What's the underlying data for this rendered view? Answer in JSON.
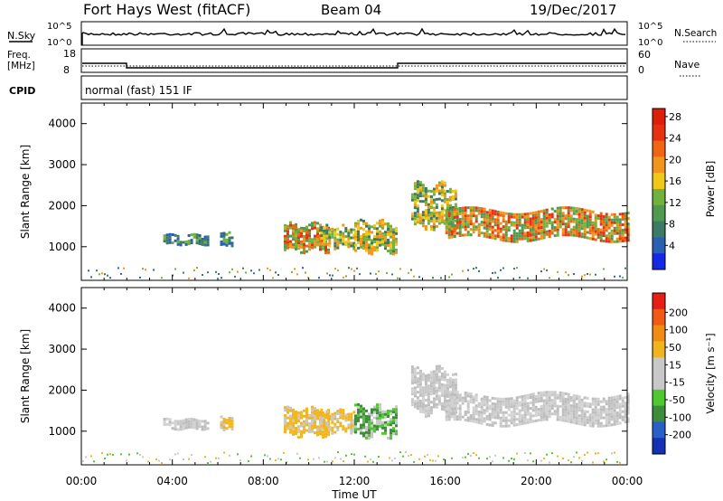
{
  "header": {
    "station": "Fort Hays West (fitACF)",
    "beam": "Beam 04",
    "date": "19/Dec/2017"
  },
  "param_panel": {
    "nsky_label": "N.Sky",
    "nsearch_label": "N.Search",
    "noise_ticks": [
      "10^5",
      "10^0"
    ],
    "freq_label_line1": "Freq.",
    "freq_label_line2": "[MHz]",
    "freq_ticks": [
      "18",
      "8"
    ],
    "nave_label": "Nave",
    "nave_ticks": [
      "60",
      "0"
    ],
    "cpid_label": "CPID",
    "cpid_value": "normal (fast) 151 IF"
  },
  "x_axis": {
    "label": "Time UT",
    "tick_labels": [
      "00:00",
      "04:00",
      "08:00",
      "12:00",
      "16:00",
      "20:00",
      "00:00"
    ]
  },
  "chart_data": [
    {
      "type": "heatmap",
      "name": "power",
      "ylabel": "Slant Range [km]",
      "y_ticks": [
        1000,
        2000,
        3000,
        4000
      ],
      "ylim": [
        180,
        4500
      ],
      "xlim_hours": [
        0,
        24
      ],
      "colorbar_label": "Power [dB]",
      "colorbar_ticks": [
        "4",
        "8",
        "12",
        "16",
        "20",
        "24",
        "28"
      ],
      "colorbar_colors": [
        "#1428e6",
        "#2a60b4",
        "#3c7a64",
        "#4f9a4f",
        "#71b23c",
        "#f0c818",
        "#f0961e",
        "#f06414",
        "#e63210",
        "#dc1e0a"
      ],
      "echo_regions": [
        {
          "t_start": 3.6,
          "t_end": 5.6,
          "r_low": 1050,
          "r_high": 1300,
          "level": "weak"
        },
        {
          "t_start": 6.1,
          "t_end": 6.6,
          "r_low": 1050,
          "r_high": 1350,
          "level": "weak"
        },
        {
          "t_start": 8.9,
          "t_end": 10.9,
          "r_low": 950,
          "r_high": 1550,
          "level": "strong"
        },
        {
          "t_start": 10.5,
          "t_end": 12.0,
          "r_low": 1000,
          "r_high": 1500,
          "level": "medium"
        },
        {
          "t_start": 12.0,
          "t_end": 13.8,
          "r_low": 900,
          "r_high": 1600,
          "level": "medium"
        },
        {
          "t_start": 14.5,
          "t_end": 16.5,
          "r_low": 1500,
          "r_high": 2500,
          "level": "medium"
        },
        {
          "t_start": 16.0,
          "t_end": 24.0,
          "r_low": 1200,
          "r_high": 1900,
          "level": "strong"
        }
      ]
    },
    {
      "type": "heatmap",
      "name": "velocity",
      "ylabel": "Slant Range [km]",
      "y_ticks": [
        1000,
        2000,
        3000,
        4000
      ],
      "ylim": [
        180,
        4500
      ],
      "xlim_hours": [
        0,
        24
      ],
      "colorbar_label": "Velocity [m s⁻¹]",
      "colorbar_ticks": [
        "200",
        "100",
        "50",
        "15",
        "-15",
        "-50",
        "-100",
        "-200"
      ],
      "colorbar_colors": [
        "#1432b4",
        "#2860c8",
        "#3c8c3c",
        "#50c832",
        "#c8c8c8",
        "#c8c8c8",
        "#f0b41e",
        "#f08c14",
        "#f05a14",
        "#e61e14"
      ],
      "echo_regions": [
        {
          "t_start": 3.6,
          "t_end": 5.6,
          "r_low": 1050,
          "r_high": 1300,
          "level": "gray"
        },
        {
          "t_start": 6.1,
          "t_end": 6.6,
          "r_low": 1050,
          "r_high": 1350,
          "level": "orange"
        },
        {
          "t_start": 8.9,
          "t_end": 10.9,
          "r_low": 950,
          "r_high": 1550,
          "level": "orange"
        },
        {
          "t_start": 10.5,
          "t_end": 12.0,
          "r_low": 1000,
          "r_high": 1500,
          "level": "orange"
        },
        {
          "t_start": 12.0,
          "t_end": 13.8,
          "r_low": 900,
          "r_high": 1600,
          "level": "green"
        },
        {
          "t_start": 14.5,
          "t_end": 16.5,
          "r_low": 1500,
          "r_high": 2500,
          "level": "gray"
        },
        {
          "t_start": 16.0,
          "t_end": 24.0,
          "r_low": 1200,
          "r_high": 1900,
          "level": "gray"
        }
      ]
    }
  ]
}
